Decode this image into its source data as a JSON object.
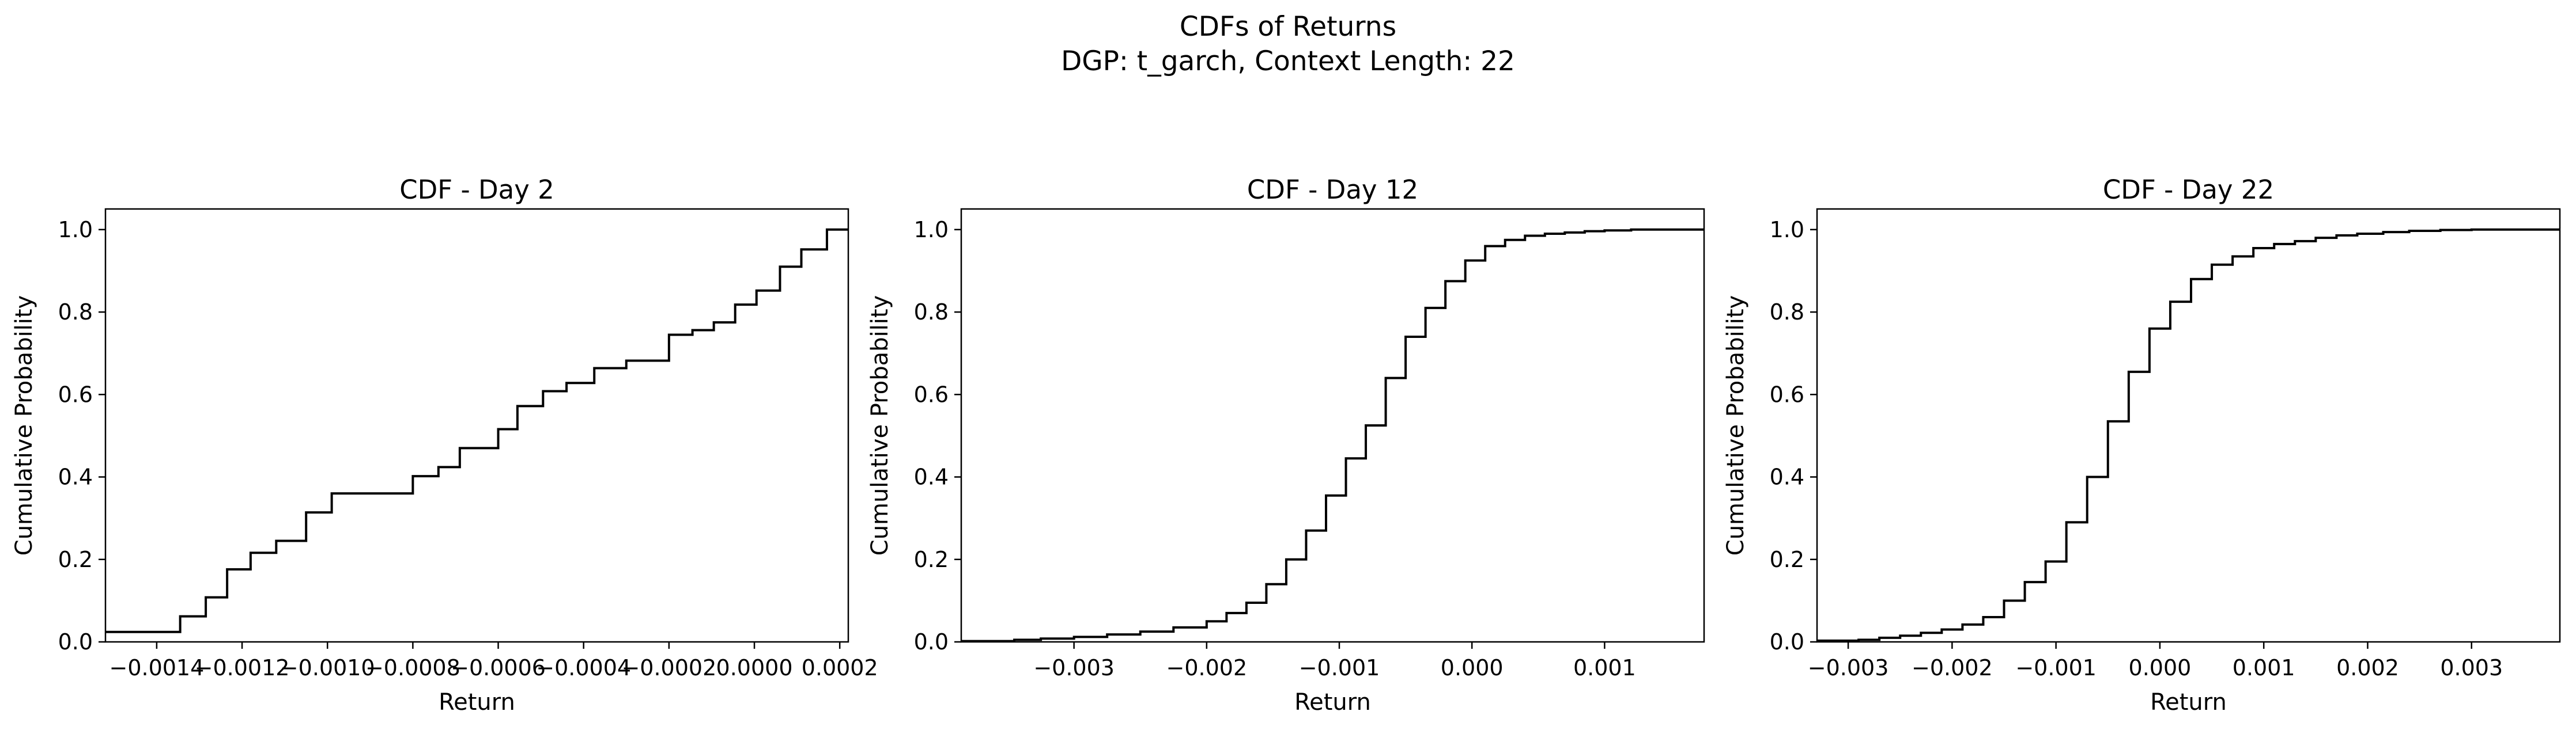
{
  "figure": {
    "title_line1": "CDFs of Returns",
    "title_line2": "DGP: t_garch, Context Length: 22"
  },
  "chart_data": [
    {
      "type": "line",
      "step": "post",
      "title": "CDF - Day 2",
      "xlabel": "Return",
      "ylabel": "Cumulative Probability",
      "xlim": [
        -0.00152,
        0.00022
      ],
      "ylim": [
        0,
        1.05
      ],
      "xticks": [
        -0.0014,
        -0.0012,
        -0.001,
        -0.0008,
        -0.0006,
        -0.0004,
        -0.0002,
        0.0,
        0.0002
      ],
      "xtick_labels": [
        "−0.0014",
        "−0.0012",
        "−0.0010",
        "−0.0008",
        "−0.0006",
        "−0.0004",
        "−0.0002",
        "0.0000",
        "0.0002"
      ],
      "yticks": [
        0,
        0.2,
        0.4,
        0.6,
        0.8,
        1.0
      ],
      "ytick_labels": [
        "0.0",
        "0.2",
        "0.4",
        "0.6",
        "0.8",
        "1.0"
      ],
      "x": [
        -0.00152,
        -0.001345,
        -0.001285,
        -0.001235,
        -0.00118,
        -0.00112,
        -0.00105,
        -0.00099,
        -0.0008,
        -0.00074,
        -0.00069,
        -0.0006,
        -0.000555,
        -0.000495,
        -0.00044,
        -0.000375,
        -0.0003,
        -0.0002,
        -0.000145,
        -9.5e-05,
        -4.5e-05,
        5e-06,
        6e-05,
        0.00011,
        0.00017,
        0.00022
      ],
      "y": [
        0.024,
        0.062,
        0.108,
        0.176,
        0.216,
        0.245,
        0.314,
        0.36,
        0.402,
        0.424,
        0.47,
        0.516,
        0.572,
        0.608,
        0.628,
        0.664,
        0.682,
        0.745,
        0.756,
        0.775,
        0.818,
        0.852,
        0.91,
        0.952,
        1.0,
        1.0
      ]
    },
    {
      "type": "line",
      "step": "post",
      "title": "CDF - Day 12",
      "xlabel": "Return",
      "ylabel": "Cumulative Probability",
      "xlim": [
        -0.00385,
        0.00175
      ],
      "ylim": [
        0,
        1.05
      ],
      "xticks": [
        -0.003,
        -0.002,
        -0.001,
        0.0,
        0.001
      ],
      "xtick_labels": [
        "−0.003",
        "−0.002",
        "−0.001",
        "0.000",
        "0.001"
      ],
      "yticks": [
        0,
        0.2,
        0.4,
        0.6,
        0.8,
        1.0
      ],
      "ytick_labels": [
        "0.0",
        "0.2",
        "0.4",
        "0.6",
        "0.8",
        "1.0"
      ],
      "x": [
        -0.00385,
        -0.00345,
        -0.00325,
        -0.003,
        -0.00275,
        -0.0025,
        -0.00225,
        -0.002,
        -0.00185,
        -0.0017,
        -0.00155,
        -0.0014,
        -0.00125,
        -0.0011,
        -0.00095,
        -0.0008,
        -0.00065,
        -0.0005,
        -0.00035,
        -0.0002,
        -5e-05,
        0.0001,
        0.00025,
        0.0004,
        0.00055,
        0.0007,
        0.00085,
        0.001,
        0.0012,
        0.0014,
        0.00175
      ],
      "y": [
        0.002,
        0.005,
        0.008,
        0.012,
        0.018,
        0.025,
        0.035,
        0.05,
        0.07,
        0.095,
        0.14,
        0.2,
        0.27,
        0.355,
        0.445,
        0.525,
        0.64,
        0.74,
        0.81,
        0.875,
        0.925,
        0.96,
        0.975,
        0.985,
        0.99,
        0.993,
        0.996,
        0.998,
        1.0,
        1.0,
        1.0
      ]
    },
    {
      "type": "line",
      "step": "post",
      "title": "CDF - Day 22",
      "xlabel": "Return",
      "ylabel": "Cumulative Probability",
      "xlim": [
        -0.0033,
        0.00385
      ],
      "ylim": [
        0,
        1.05
      ],
      "xticks": [
        -0.003,
        -0.002,
        -0.001,
        0.0,
        0.001,
        0.002,
        0.003
      ],
      "xtick_labels": [
        "−0.003",
        "−0.002",
        "−0.001",
        "0.000",
        "0.001",
        "0.002",
        "0.003"
      ],
      "yticks": [
        0,
        0.2,
        0.4,
        0.6,
        0.8,
        1.0
      ],
      "ytick_labels": [
        "0.0",
        "0.2",
        "0.4",
        "0.6",
        "0.8",
        "1.0"
      ],
      "x": [
        -0.0033,
        -0.0029,
        -0.0027,
        -0.0025,
        -0.0023,
        -0.0021,
        -0.0019,
        -0.0017,
        -0.0015,
        -0.0013,
        -0.0011,
        -0.0009,
        -0.0007,
        -0.0005,
        -0.0003,
        -0.0001,
        0.0001,
        0.0003,
        0.0005,
        0.0007,
        0.0009,
        0.0011,
        0.0013,
        0.0015,
        0.0017,
        0.0019,
        0.00215,
        0.0024,
        0.0027,
        0.003,
        0.00385
      ],
      "y": [
        0.003,
        0.005,
        0.01,
        0.015,
        0.022,
        0.03,
        0.042,
        0.06,
        0.1,
        0.145,
        0.195,
        0.29,
        0.4,
        0.535,
        0.655,
        0.76,
        0.825,
        0.88,
        0.915,
        0.935,
        0.955,
        0.965,
        0.972,
        0.98,
        0.986,
        0.99,
        0.994,
        0.997,
        0.999,
        1.0,
        1.0
      ]
    }
  ]
}
